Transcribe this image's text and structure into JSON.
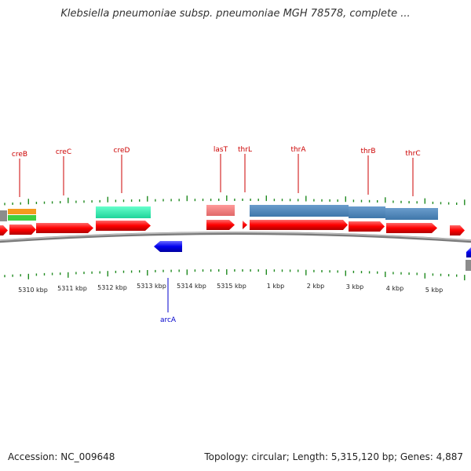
{
  "title": "Klebsiella pneumoniae subsp. pneumoniae MGH 78578, complete ...",
  "footer": {
    "accession": "Accession: NC_009648",
    "stats": "Topology: circular; Length: 5,315,120 bp; Genes: 4,887"
  },
  "colors": {
    "forward_gene": "#ff0000",
    "reverse_gene": "#0000ee",
    "backbone": "#8c8c8c",
    "tick": "#1f8a1f",
    "forward_label": "#cc0000",
    "reverse_label": "#0000cc"
  },
  "scale_labels": [
    "5310 kbp",
    "5311 kbp",
    "5312 kbp",
    "5313 kbp",
    "5314 kbp",
    "5315 kbp",
    "1 kbp",
    "2 kbp",
    "3 kbp",
    "4 kbp",
    "5 kbp"
  ],
  "forward_gene_labels": [
    "creB",
    "creC",
    "creD",
    "lasT",
    "thrL",
    "thrA",
    "thrB",
    "thrC"
  ],
  "reverse_gene_labels": [
    "arcA"
  ]
}
